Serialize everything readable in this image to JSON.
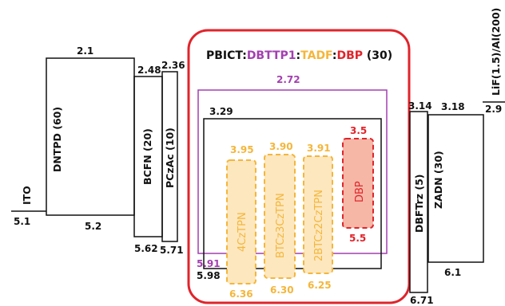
{
  "colors": {
    "black": "#111111",
    "red": "#e0242b",
    "purple": "#a33fb0",
    "orange": "#f4b63a",
    "orange_fill": "#fde7bf",
    "red_fill": "#f6b7a6"
  },
  "layers": {
    "ito": {
      "name": "ITO",
      "value": "5.1"
    },
    "dntpd": {
      "name": "DNTPD (60)",
      "lumo": "2.1",
      "homo": "5.2"
    },
    "bcfn": {
      "name": "BCFN (20)",
      "lumo": "2.48",
      "homo": "5.62"
    },
    "pczac": {
      "name": "PCzAc (10)",
      "lumo": "2.36",
      "homo": "5.71"
    },
    "dbftrz": {
      "name": "DBFTrz (5)",
      "lumo": "3.14",
      "homo": "6.71"
    },
    "zadn": {
      "name": "ZADN (30)",
      "lumo": "3.18",
      "homo": "6.1"
    },
    "lif": {
      "name": "LiF(1.5)/Al(200)",
      "value": "2.9"
    }
  },
  "eml": {
    "title": {
      "host": "PBICT",
      "sep1": ":",
      "sensitizer": "DBTTP1",
      "sep2": ":",
      "tadf": "TADF",
      "sep3": ":",
      "emitter": "DBP",
      "thickness": " (30)"
    },
    "pbict": {
      "lumo": "3.29",
      "homo": "5.98"
    },
    "dbttp1": {
      "lumo": "2.72",
      "homo": "5.91"
    },
    "dopants": [
      {
        "name": "4CzTPN",
        "lumo": "3.95",
        "homo": "6.36"
      },
      {
        "name": "BTCz3CzTPN",
        "lumo": "3.90",
        "homo": "6.30"
      },
      {
        "name": "2BTCz2CzTPN",
        "lumo": "3.91",
        "homo": "6.25"
      },
      {
        "name": "DBP",
        "lumo": "3.5",
        "homo": "5.5"
      }
    ]
  }
}
